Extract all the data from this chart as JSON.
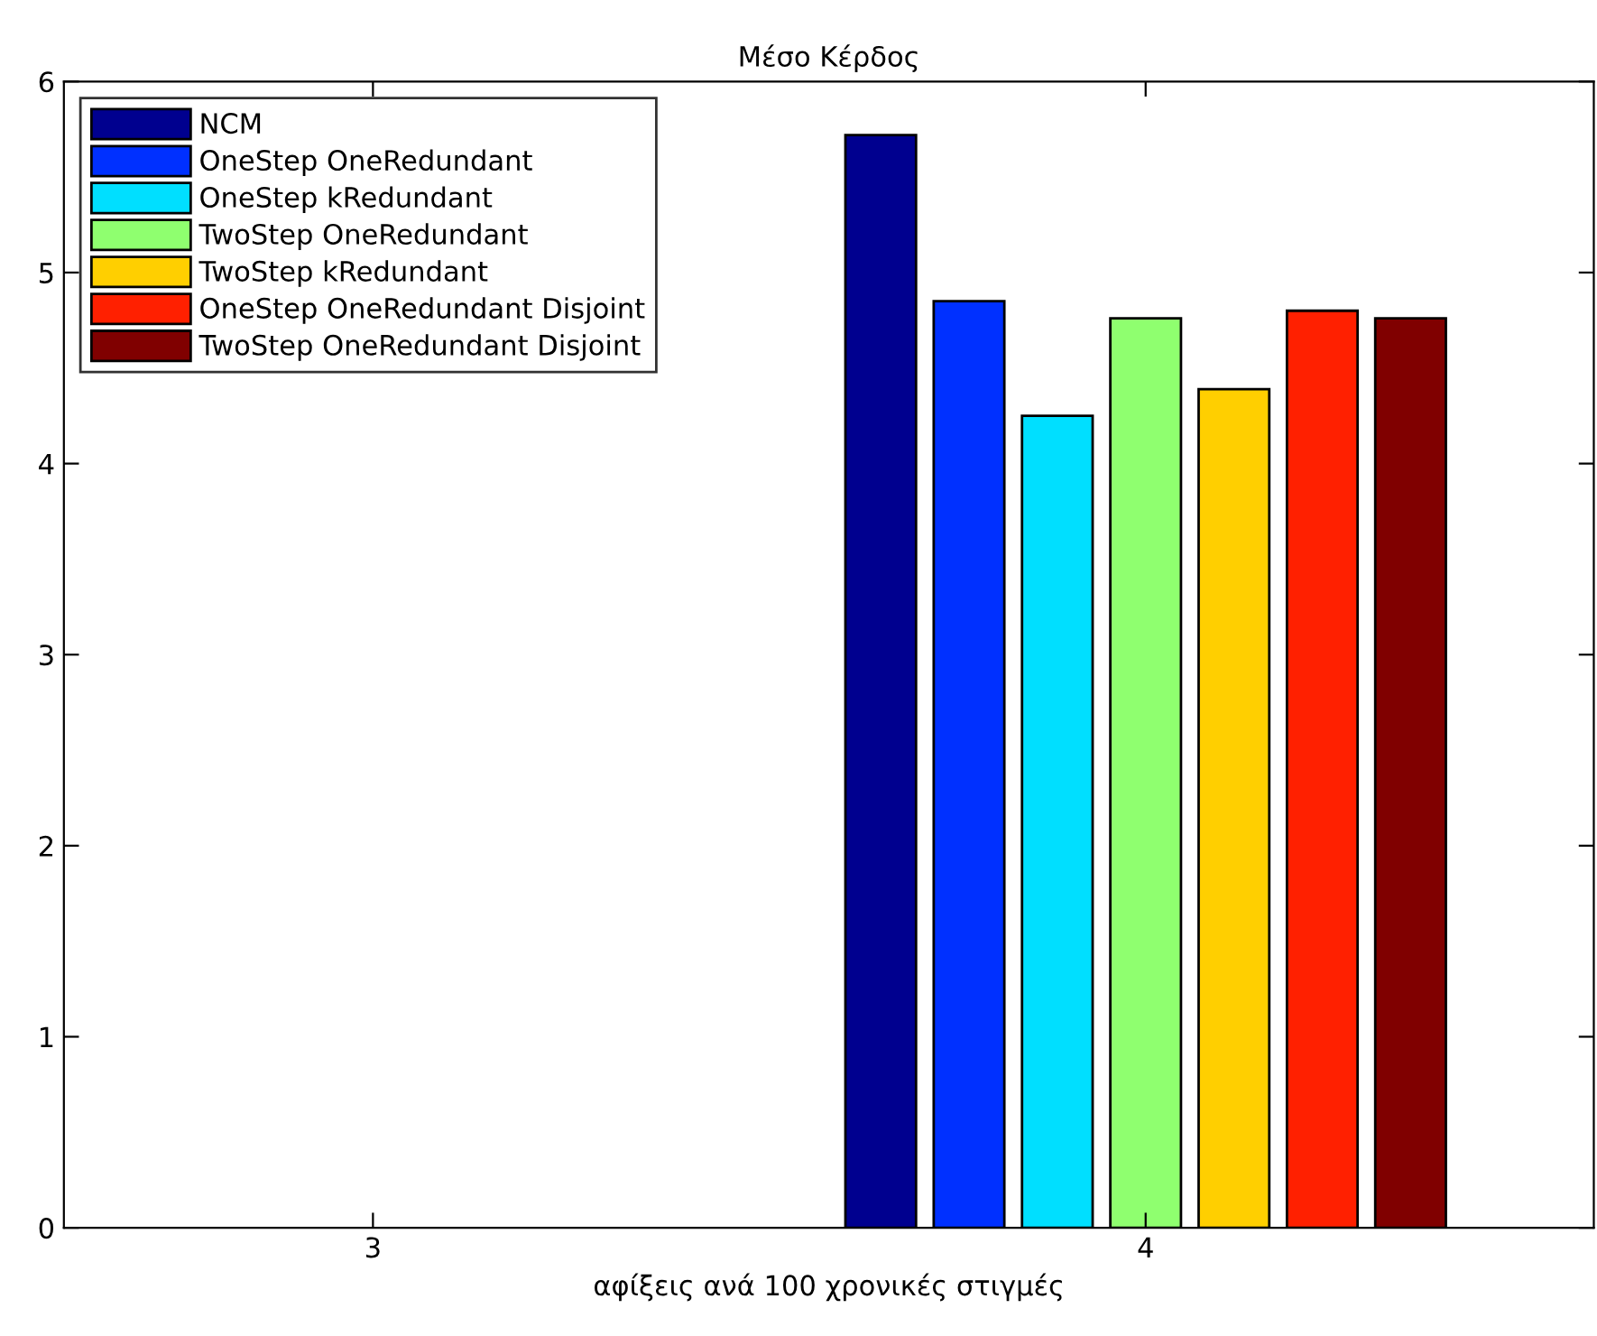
{
  "chart_data": {
    "type": "bar",
    "title": "Μέσο Κέρδος",
    "xlabel": "αφίξεις ανά 100 χρονικές στιγμές",
    "categories": [
      "3",
      "4"
    ],
    "ylim": [
      0,
      6
    ],
    "yticks": [
      0,
      1,
      2,
      3,
      4,
      5,
      6
    ],
    "grid": false,
    "legend": "top left",
    "series": [
      {
        "name": "NCM",
        "color": "#00008f",
        "values": [
          null,
          5.72
        ]
      },
      {
        "name": "OneStep OneRedundant",
        "color": "#0030ff",
        "values": [
          null,
          4.85
        ]
      },
      {
        "name": "OneStep kRedundant",
        "color": "#00dfff",
        "values": [
          null,
          4.25
        ]
      },
      {
        "name": "TwoStep OneRedundant",
        "color": "#8fff6f",
        "values": [
          null,
          4.76
        ]
      },
      {
        "name": "TwoStep kRedundant",
        "color": "#ffcf00",
        "values": [
          null,
          4.39
        ]
      },
      {
        "name": "OneStep OneRedundant Disjoint",
        "color": "#ff2000",
        "values": [
          null,
          4.8
        ]
      },
      {
        "name": "TwoStep OneRedundant Disjoint",
        "color": "#800000",
        "values": [
          null,
          4.76
        ]
      }
    ]
  }
}
